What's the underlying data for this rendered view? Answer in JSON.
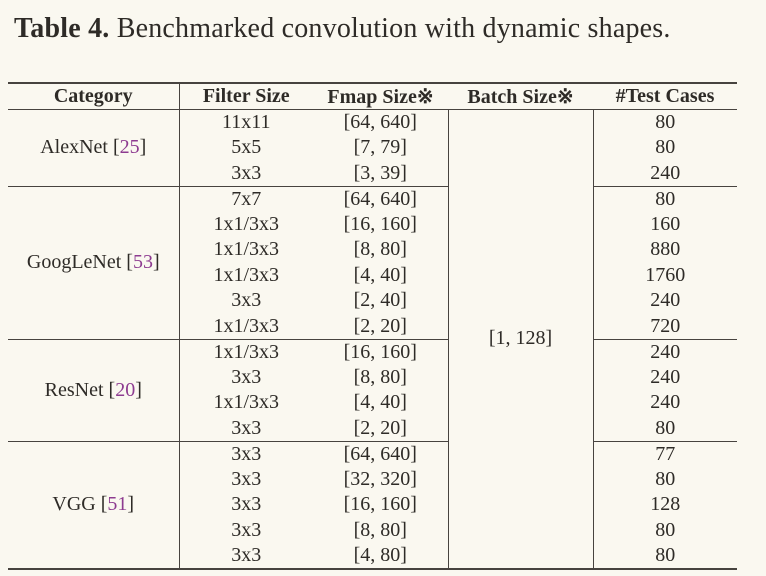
{
  "page": {
    "background_color": "#faf8f0",
    "text_color": "#2e2b27",
    "rule_color": "#47433f",
    "citation_color": "#8d3b90"
  },
  "caption": {
    "label": "Table 4.",
    "text": " Benchmarked convolution with dynamic shapes."
  },
  "table": {
    "headers": [
      "Category",
      "Filter Size",
      "Fmap Size※",
      "Batch Size※",
      "#Test Cases"
    ],
    "batch_size": "[1, 128]",
    "groups": [
      {
        "name": "AlexNet",
        "citation": "25",
        "rows": [
          {
            "filter": "11x11",
            "fmap": "[64, 640]",
            "tests": "80"
          },
          {
            "filter": "5x5",
            "fmap": "[7, 79]",
            "tests": "80"
          },
          {
            "filter": "3x3",
            "fmap": "[3, 39]",
            "tests": "240"
          }
        ]
      },
      {
        "name": "GoogLeNet",
        "citation": "53",
        "rows": [
          {
            "filter": "7x7",
            "fmap": "[64, 640]",
            "tests": "80"
          },
          {
            "filter": "1x1/3x3",
            "fmap": "[16, 160]",
            "tests": "160"
          },
          {
            "filter": "1x1/3x3",
            "fmap": "[8, 80]",
            "tests": "880"
          },
          {
            "filter": "1x1/3x3",
            "fmap": "[4, 40]",
            "tests": "1760"
          },
          {
            "filter": "3x3",
            "fmap": "[2, 40]",
            "tests": "240"
          },
          {
            "filter": "1x1/3x3",
            "fmap": "[2, 20]",
            "tests": "720"
          }
        ]
      },
      {
        "name": "ResNet",
        "citation": "20",
        "rows": [
          {
            "filter": "1x1/3x3",
            "fmap": "[16, 160]",
            "tests": "240"
          },
          {
            "filter": "3x3",
            "fmap": "[8, 80]",
            "tests": "240"
          },
          {
            "filter": "1x1/3x3",
            "fmap": "[4, 40]",
            "tests": "240"
          },
          {
            "filter": "3x3",
            "fmap": "[2, 20]",
            "tests": "80"
          }
        ]
      },
      {
        "name": "VGG",
        "citation": "51",
        "rows": [
          {
            "filter": "3x3",
            "fmap": "[64, 640]",
            "tests": "77"
          },
          {
            "filter": "3x3",
            "fmap": "[32, 320]",
            "tests": "80"
          },
          {
            "filter": "3x3",
            "fmap": "[16, 160]",
            "tests": "128"
          },
          {
            "filter": "3x3",
            "fmap": "[8, 80]",
            "tests": "80"
          },
          {
            "filter": "3x3",
            "fmap": "[4, 80]",
            "tests": "80"
          }
        ]
      }
    ]
  }
}
